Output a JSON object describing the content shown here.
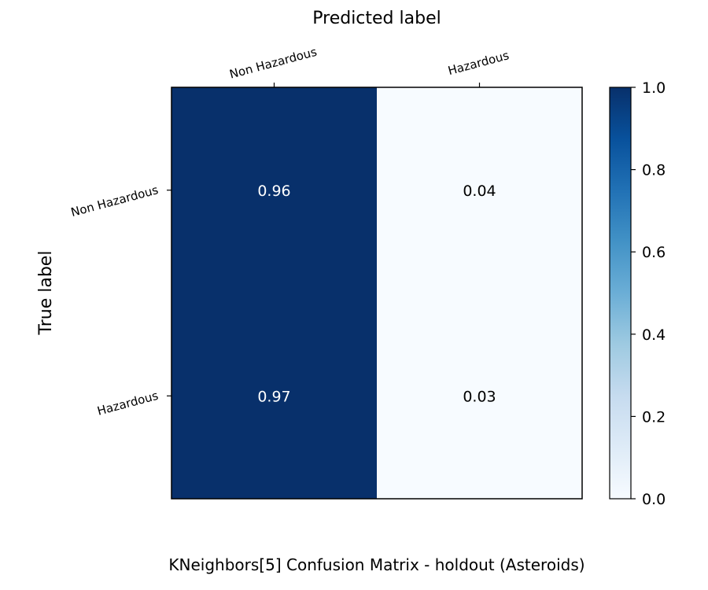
{
  "chart_data": {
    "type": "heatmap",
    "title": "Predicted label",
    "xlabel": "Predicted label",
    "ylabel": "True label",
    "caption": "KNeighbors[5] Confusion Matrix - holdout (Asteroids)",
    "x_categories": [
      "Non Hazardous",
      "Hazardous"
    ],
    "y_categories": [
      "Non Hazardous",
      "Hazardous"
    ],
    "values": [
      [
        0.96,
        0.04
      ],
      [
        0.97,
        0.03
      ]
    ],
    "value_labels": [
      [
        "0.96",
        "0.04"
      ],
      [
        "0.97",
        "0.03"
      ]
    ],
    "colorbar": {
      "range": [
        0.0,
        1.0
      ],
      "ticks": [
        "0.0",
        "0.2",
        "0.4",
        "0.6",
        "0.8",
        "1.0"
      ],
      "colormap": "Blues"
    },
    "colors": {
      "high": "#08306b",
      "low": "#f7fbff",
      "text_on_dark": "#ffffff",
      "text_on_light": "#000000"
    }
  }
}
